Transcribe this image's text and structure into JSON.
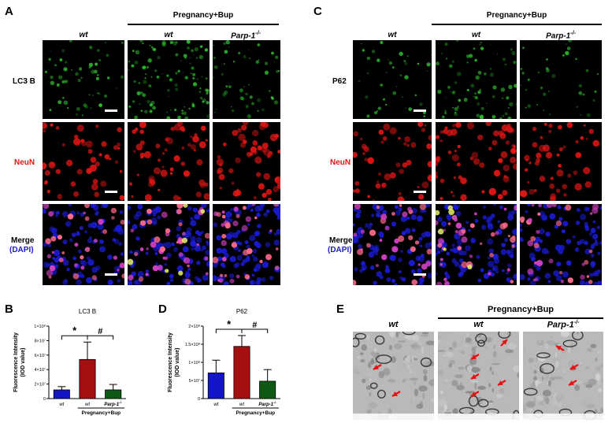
{
  "panels": {
    "A": {
      "letter": "A",
      "group_header": "Pregnancy+Bup",
      "col_headers": [
        "wt",
        "wt",
        "Parp-1"
      ],
      "superscript": "-/-",
      "rows": [
        "LC3 B",
        "NeuN",
        "Merge",
        "(DAPI)"
      ]
    },
    "C": {
      "letter": "C",
      "group_header": "Pregnancy+Bup",
      "col_headers": [
        "wt",
        "wt",
        "Parp-1"
      ],
      "superscript": "-/-",
      "rows": [
        "P62",
        "NeuN",
        "Merge",
        "(DAPI)"
      ]
    },
    "B": {
      "letter": "B"
    },
    "D": {
      "letter": "D"
    },
    "E": {
      "letter": "E",
      "group_header": "Pregnancy+Bup",
      "col_headers": [
        "wt",
        "wt",
        "Parp-1"
      ],
      "superscript": "-/-"
    }
  },
  "colors": {
    "wt": "#1414c8",
    "preg_wt": "#a50f0f",
    "preg_parp": "#0e5a14",
    "green": "#33cc33",
    "red": "#e01515",
    "blue": "#1a1ad0",
    "arrow": "#e81010"
  },
  "chart_data": [
    {
      "type": "bar",
      "title": "LC3 B",
      "ylabel": "Fluorescence Intensity (IOD value)",
      "ytick_labels": [
        "0",
        "2×10⁷",
        "4×10⁷",
        "6×10⁷",
        "8×10⁷",
        "1×10⁸"
      ],
      "ylim": [
        0,
        100000000
      ],
      "categories": [
        "wt",
        "wt",
        "Parp-1"
      ],
      "category_superscripts": [
        "",
        "",
        "-/-"
      ],
      "group_label": "Pregnancy+Bup",
      "values": [
        12000000,
        54000000,
        12000000
      ],
      "errors": [
        4500000,
        24000000,
        7500000
      ],
      "significance": [
        "*",
        "#"
      ]
    },
    {
      "type": "bar",
      "title": "P62",
      "ylabel": "Fluorescence Intensity (IOD value)",
      "ytick_labels": [
        "0",
        "5×10⁷",
        "1×10⁸",
        "1.5×10⁸",
        "2×10⁸"
      ],
      "ylim": [
        0,
        200000000
      ],
      "categories": [
        "wt",
        "wt",
        "Parp-1"
      ],
      "category_superscripts": [
        "",
        "",
        "-/-"
      ],
      "group_label": "Pregnancy+Bup",
      "values": [
        71000000,
        144000000,
        48000000
      ],
      "errors": [
        35000000,
        30000000,
        32000000
      ],
      "significance": [
        "*",
        "#"
      ]
    }
  ]
}
